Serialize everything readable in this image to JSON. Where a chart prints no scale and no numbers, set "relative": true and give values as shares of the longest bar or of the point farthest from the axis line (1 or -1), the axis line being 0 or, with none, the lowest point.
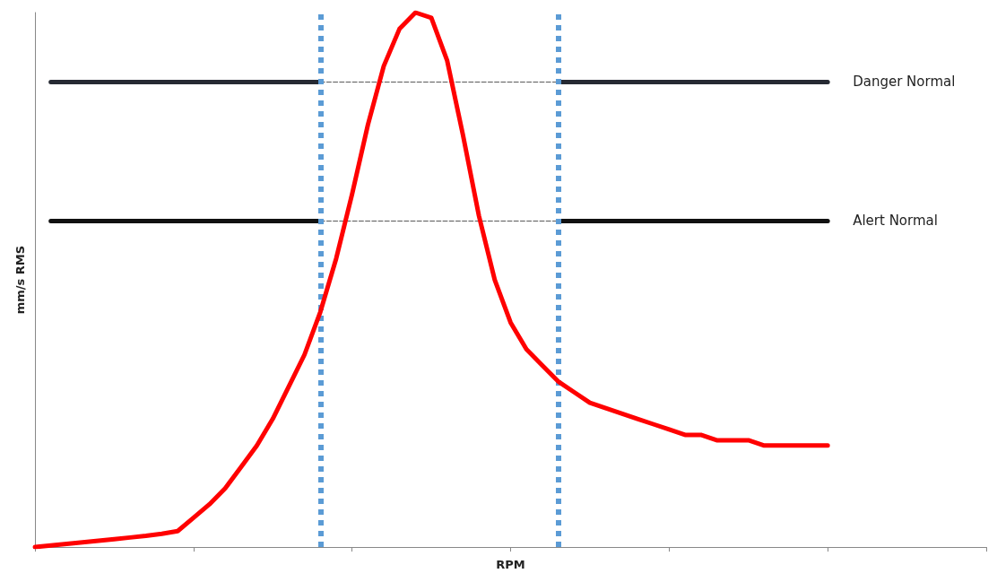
{
  "chart_data": {
    "type": "line",
    "relative": true,
    "xlabel": "RPM",
    "ylabel": "mm/s RMS",
    "legend": false,
    "marker": "none",
    "categories": [
      null,
      null,
      null,
      null,
      null,
      null,
      null,
      null,
      null,
      null,
      null,
      null,
      null,
      null,
      null,
      null,
      null,
      null,
      null,
      null,
      null,
      null,
      null,
      null,
      null,
      null,
      null,
      null,
      null,
      null,
      null,
      null,
      null,
      null,
      null,
      null,
      null,
      null,
      null,
      null,
      null,
      null,
      null,
      null,
      null,
      null,
      null,
      null,
      null,
      null,
      null,
      null,
      null,
      null,
      null,
      null,
      null,
      null,
      null,
      null,
      null
    ],
    "series": [
      {
        "color": "#ff0000",
        "line_style": "solid",
        "values": [
          0,
          0.003,
          0.006,
          0.009,
          0.012,
          0.015,
          0.018,
          0.021,
          0.025,
          0.03,
          0.055,
          0.08,
          0.11,
          0.15,
          0.19,
          0.24,
          0.3,
          0.36,
          0.44,
          0.54,
          0.66,
          0.79,
          0.9,
          0.97,
          1,
          0.99,
          0.91,
          0.77,
          0.62,
          0.5,
          0.42,
          0.37,
          0.34,
          0.31,
          0.29,
          0.27,
          0.26,
          0.25,
          0.24,
          0.23,
          0.22,
          0.21,
          0.21,
          0.2,
          0.2,
          0.2,
          0.19,
          0.19,
          0.19,
          0.19,
          0.19,
          null,
          null,
          null,
          null,
          null,
          null,
          null,
          null,
          null,
          null
        ]
      },
      {
        "name": "Danger Normal",
        "color": "#262a33",
        "line_style": "solid",
        "values": [
          null,
          0.87,
          0.87,
          0.87,
          0.87,
          0.87,
          0.87,
          0.87,
          0.87,
          0.87,
          0.87,
          0.87,
          0.87,
          0.87,
          0.87,
          0.87,
          0.87,
          0.87,
          0.87,
          null,
          null,
          null,
          null,
          null,
          null,
          null,
          null,
          null,
          null,
          null,
          null,
          null,
          null,
          0.87,
          0.87,
          0.87,
          0.87,
          0.87,
          0.87,
          0.87,
          0.87,
          0.87,
          0.87,
          0.87,
          0.87,
          0.87,
          0.87,
          0.87,
          0.87,
          0.87,
          0.87,
          null,
          null,
          null,
          null,
          null,
          null,
          null,
          null,
          null,
          null
        ]
      },
      {
        "color": "#595959",
        "line_style": "dashed",
        "values": [
          null,
          null,
          null,
          null,
          null,
          null,
          null,
          null,
          null,
          null,
          null,
          null,
          null,
          null,
          null,
          null,
          null,
          null,
          0.87,
          0.87,
          0.87,
          0.87,
          0.87,
          0.87,
          0.87,
          0.87,
          0.87,
          0.87,
          0.87,
          0.87,
          0.87,
          0.87,
          0.87,
          0.87,
          null,
          null,
          null,
          null,
          null,
          null,
          null,
          null,
          null,
          null,
          null,
          null,
          null,
          null,
          null,
          null,
          null,
          null,
          null,
          null,
          null,
          null,
          null,
          null,
          null,
          null,
          null
        ]
      },
      {
        "name": "Alert Normal",
        "color": "#111111",
        "line_style": "solid",
        "values": [
          null,
          0.61,
          0.61,
          0.61,
          0.61,
          0.61,
          0.61,
          0.61,
          0.61,
          0.61,
          0.61,
          0.61,
          0.61,
          0.61,
          0.61,
          0.61,
          0.61,
          0.61,
          0.61,
          null,
          null,
          null,
          null,
          null,
          null,
          null,
          null,
          null,
          null,
          null,
          null,
          null,
          null,
          0.61,
          0.61,
          0.61,
          0.61,
          0.61,
          0.61,
          0.61,
          0.61,
          0.61,
          0.61,
          0.61,
          0.61,
          0.61,
          0.61,
          0.61,
          0.61,
          0.61,
          0.61,
          null,
          null,
          null,
          null,
          null,
          null,
          null,
          null,
          null,
          null
        ]
      },
      {
        "color": "#595959",
        "line_style": "dashed",
        "values": [
          null,
          null,
          null,
          null,
          null,
          null,
          null,
          null,
          null,
          null,
          null,
          null,
          null,
          null,
          null,
          null,
          null,
          null,
          0.61,
          0.61,
          0.61,
          0.61,
          0.61,
          0.61,
          0.61,
          0.61,
          0.61,
          0.61,
          0.61,
          0.61,
          0.61,
          0.61,
          0.61,
          0.61,
          null,
          null,
          null,
          null,
          null,
          null,
          null,
          null,
          null,
          null,
          null,
          null,
          null,
          null,
          null,
          null,
          null,
          null,
          null,
          null,
          null,
          null,
          null,
          null,
          null,
          null,
          null
        ]
      }
    ]
  }
}
